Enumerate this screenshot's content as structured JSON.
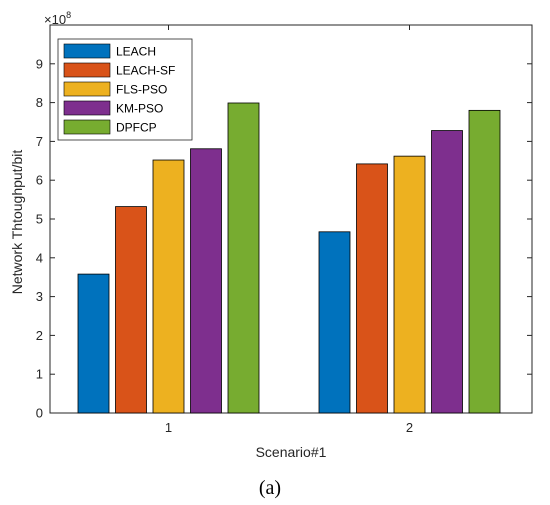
{
  "chart_data": {
    "type": "bar",
    "categories": [
      "1",
      "2"
    ],
    "series": [
      {
        "name": "LEACH",
        "values": [
          3.58,
          4.67
        ],
        "color": "#0072BD"
      },
      {
        "name": "LEACH-SF",
        "values": [
          5.32,
          6.42
        ],
        "color": "#D95319"
      },
      {
        "name": "FLS-PSO",
        "values": [
          6.52,
          6.62
        ],
        "color": "#EDB120"
      },
      {
        "name": "KM-PSO",
        "values": [
          6.81,
          7.28
        ],
        "color": "#7E2F8E"
      },
      {
        "name": "DPFCP",
        "values": [
          7.99,
          7.8
        ],
        "color": "#77AC30"
      }
    ],
    "xlabel": "Scenario#1",
    "ylabel": "Network Thtoughput/bit",
    "ylim": [
      0,
      10
    ],
    "yticks": [
      0,
      1,
      2,
      3,
      4,
      5,
      6,
      7,
      8,
      9
    ],
    "exponent_label": "×10",
    "exponent_power": "8",
    "legend_position": "top-left",
    "grid": false
  },
  "caption": "(a)"
}
